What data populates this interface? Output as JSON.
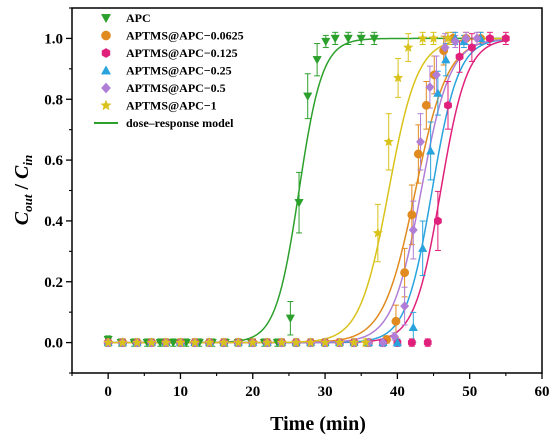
{
  "chart_data": {
    "type": "scatter",
    "xlabel": "Time (min)",
    "ylabel_main": "C",
    "ylabel_sub1": "out",
    "ylabel_sep": " / ",
    "ylabel_sub2": "in",
    "xlim": [
      -5,
      60
    ],
    "ylim": [
      -0.1,
      1.1
    ],
    "xticks": [
      "0",
      "10",
      "20",
      "30",
      "40",
      "50",
      "60"
    ],
    "yticks": [
      "0.0",
      "0.2",
      "0.4",
      "0.6",
      "0.8",
      "1.0"
    ],
    "grid": false,
    "legend_position": "top-left",
    "model_label": "dose–response model",
    "series": [
      {
        "name": "APC",
        "color": "#2ca02c",
        "marker": "triangle-down",
        "t50": 26.4,
        "k": 0.62,
        "points": [
          [
            0,
            0.01
          ],
          [
            1.8,
            0.0
          ],
          [
            3.6,
            0.0
          ],
          [
            5.4,
            0.0
          ],
          [
            7.2,
            0.0
          ],
          [
            9,
            0.0
          ],
          [
            10.8,
            0.0
          ],
          [
            12.6,
            0.0
          ],
          [
            14.4,
            0.0
          ],
          [
            16.2,
            0.0
          ],
          [
            18,
            0.0
          ],
          [
            19.8,
            0.0
          ],
          [
            21.6,
            0.0
          ],
          [
            23.4,
            0.0
          ],
          [
            25.2,
            0.08
          ],
          [
            26.4,
            0.46
          ],
          [
            27.6,
            0.81
          ],
          [
            28.9,
            0.93
          ],
          [
            30.1,
            0.99
          ],
          [
            31.4,
            1.0
          ],
          [
            33.2,
            1.0
          ],
          [
            35,
            1.0
          ],
          [
            36.8,
            1.0
          ]
        ]
      },
      {
        "name": "APTMS@APC−0.0625",
        "color": "#e08a1f",
        "marker": "circle",
        "t50": 42.5,
        "k": 0.45,
        "points": [
          [
            0,
            0.0
          ],
          [
            2,
            0.0
          ],
          [
            4,
            0.0
          ],
          [
            6,
            0.0
          ],
          [
            8,
            0.0
          ],
          [
            10,
            0.0
          ],
          [
            12,
            0.0
          ],
          [
            14,
            0.0
          ],
          [
            16,
            0.0
          ],
          [
            18,
            0.0
          ],
          [
            20,
            0.0
          ],
          [
            22,
            0.0
          ],
          [
            24,
            0.0
          ],
          [
            26,
            0.0
          ],
          [
            28,
            0.0
          ],
          [
            30,
            0.0
          ],
          [
            32,
            0.0
          ],
          [
            34,
            0.0
          ],
          [
            36,
            0.0
          ],
          [
            38.5,
            0.01
          ],
          [
            39.8,
            0.07
          ],
          [
            41,
            0.23
          ],
          [
            42,
            0.42
          ],
          [
            42.9,
            0.62
          ],
          [
            44,
            0.78
          ],
          [
            45.1,
            0.88
          ],
          [
            46.4,
            0.96
          ],
          [
            47.7,
            1.0
          ],
          [
            49.5,
            1.0
          ],
          [
            51.5,
            1.0
          ]
        ]
      },
      {
        "name": "APTMS@APC−0.125",
        "color": "#e0217c",
        "marker": "hexagon",
        "t50": 46.0,
        "k": 0.55,
        "points": [
          [
            0,
            0.0
          ],
          [
            2,
            0.0
          ],
          [
            4,
            0.0
          ],
          [
            6,
            0.0
          ],
          [
            8,
            0.0
          ],
          [
            10,
            0.0
          ],
          [
            12,
            0.0
          ],
          [
            14,
            0.0
          ],
          [
            16,
            0.0
          ],
          [
            18,
            0.0
          ],
          [
            20,
            0.0
          ],
          [
            22,
            0.0
          ],
          [
            24,
            0.0
          ],
          [
            26,
            0.0
          ],
          [
            28,
            0.0
          ],
          [
            30,
            0.0
          ],
          [
            32,
            0.0
          ],
          [
            34,
            0.0
          ],
          [
            36,
            0.0
          ],
          [
            38,
            0.0
          ],
          [
            40,
            0.0
          ],
          [
            42,
            0.0
          ],
          [
            44.2,
            0.0
          ],
          [
            45.6,
            0.4
          ],
          [
            47,
            0.78
          ],
          [
            48.6,
            0.94
          ],
          [
            50.3,
            0.97
          ],
          [
            52.8,
            1.0
          ],
          [
            55,
            1.0
          ]
        ]
      },
      {
        "name": "APTMS@APC−0.25",
        "color": "#29a3dd",
        "marker": "triangle-up",
        "t50": 44.8,
        "k": 0.55,
        "points": [
          [
            0,
            0.0
          ],
          [
            2,
            0.0
          ],
          [
            4,
            0.0
          ],
          [
            6,
            0.0
          ],
          [
            8,
            0.0
          ],
          [
            10,
            0.0
          ],
          [
            12,
            0.0
          ],
          [
            14,
            0.0
          ],
          [
            16,
            0.0
          ],
          [
            18,
            0.0
          ],
          [
            20,
            0.0
          ],
          [
            22,
            0.0
          ],
          [
            24,
            0.0
          ],
          [
            26,
            0.0
          ],
          [
            28,
            0.0
          ],
          [
            30,
            0.0
          ],
          [
            32,
            0.0
          ],
          [
            34,
            0.0
          ],
          [
            36,
            0.0
          ],
          [
            38,
            0.0
          ],
          [
            40,
            0.0
          ],
          [
            42.2,
            0.05
          ],
          [
            43.5,
            0.31
          ],
          [
            44.6,
            0.63
          ],
          [
            45.6,
            0.82
          ],
          [
            46.7,
            0.93
          ],
          [
            48,
            1.0
          ],
          [
            49.2,
            0.99
          ],
          [
            51.5,
            1.0
          ]
        ]
      },
      {
        "name": "APTMS@APC−0.5",
        "color": "#b07ed6",
        "marker": "diamond",
        "t50": 43.3,
        "k": 0.5,
        "points": [
          [
            0,
            0.0
          ],
          [
            2,
            0.0
          ],
          [
            4,
            0.0
          ],
          [
            6,
            0.0
          ],
          [
            8,
            0.0
          ],
          [
            10,
            0.0
          ],
          [
            12,
            0.0
          ],
          [
            14,
            0.0
          ],
          [
            16,
            0.0
          ],
          [
            18,
            0.0
          ],
          [
            20,
            0.0
          ],
          [
            22,
            0.0
          ],
          [
            24,
            0.0
          ],
          [
            26,
            0.0
          ],
          [
            28,
            0.0
          ],
          [
            30,
            0.0
          ],
          [
            32,
            0.0
          ],
          [
            34,
            0.0
          ],
          [
            36,
            0.0
          ],
          [
            38,
            0.0
          ],
          [
            39.6,
            0.02
          ],
          [
            41,
            0.12
          ],
          [
            42.2,
            0.37
          ],
          [
            43.2,
            0.66
          ],
          [
            44.5,
            0.84
          ],
          [
            45.4,
            0.88
          ],
          [
            46.6,
            0.97
          ],
          [
            48,
            0.99
          ],
          [
            49.5,
            1.0
          ],
          [
            51,
            1.0
          ]
        ]
      },
      {
        "name": "APTMS@APC−1",
        "color": "#d9c21a",
        "marker": "star",
        "t50": 38.8,
        "k": 0.5,
        "points": [
          [
            0,
            0.0
          ],
          [
            2,
            0.0
          ],
          [
            4,
            0.0
          ],
          [
            6,
            0.0
          ],
          [
            8,
            0.0
          ],
          [
            10,
            0.0
          ],
          [
            12,
            0.0
          ],
          [
            14,
            0.0
          ],
          [
            16,
            0.0
          ],
          [
            18,
            0.0
          ],
          [
            20,
            0.0
          ],
          [
            22,
            0.0
          ],
          [
            24,
            0.0
          ],
          [
            26,
            0.0
          ],
          [
            28,
            0.0
          ],
          [
            30,
            0.0
          ],
          [
            32,
            0.0
          ],
          [
            34,
            0.0
          ],
          [
            35.6,
            0.0
          ],
          [
            37.3,
            0.36
          ],
          [
            38.8,
            0.66
          ],
          [
            40.1,
            0.87
          ],
          [
            41.5,
            0.97
          ],
          [
            43.5,
            1.0
          ],
          [
            45,
            1.0
          ],
          [
            47,
            1.0
          ]
        ]
      }
    ]
  }
}
